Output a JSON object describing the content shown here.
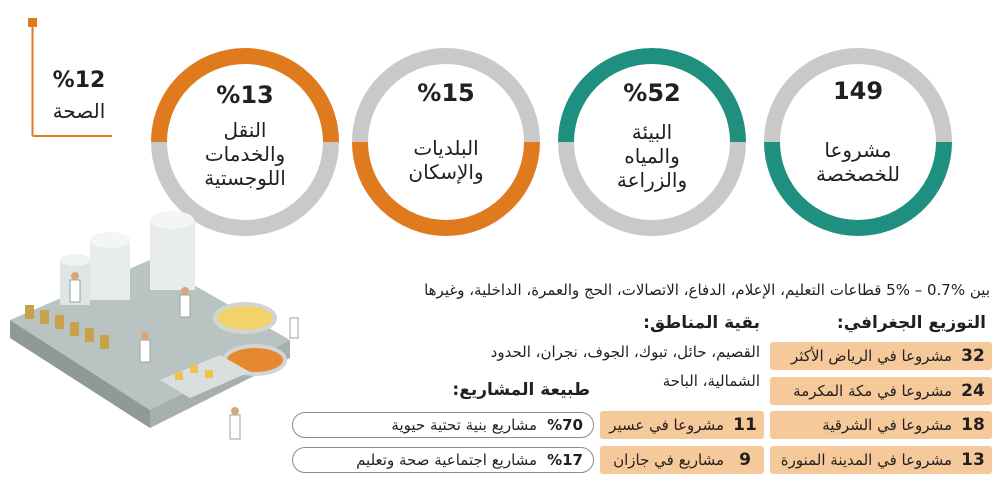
{
  "colors": {
    "orange": "#e07a1f",
    "teal": "#1f8f80",
    "gray": "#bdbdbd",
    "peach": "#f6c99a",
    "dark": "#231f20"
  },
  "health": {
    "value": "%12",
    "label": "الصحة"
  },
  "rings": [
    {
      "value": "149",
      "label_lines": [
        "مشروعا",
        "للخصخصة"
      ]
    },
    {
      "value": "%52",
      "label_lines": [
        "البيئة",
        "والمياه",
        "والزراعة"
      ]
    },
    {
      "value": "%15",
      "label_lines": [
        "البلديات",
        "والإسكان"
      ]
    },
    {
      "value": "%13",
      "label_lines": [
        "النقل",
        "والخدمات",
        "اللوجستية"
      ]
    }
  ],
  "sectors_line": "بين %0.7 – %5 قطاعات التعليم، الإعلام، الدفاع، الاتصالات، الحج والعمرة، الداخلية، وغيرها",
  "geo": {
    "heading": "التوزيع الجغرافي:",
    "items": [
      {
        "num": "32",
        "label": "مشروعا في الرياض الأكثر"
      },
      {
        "num": "24",
        "label": "مشروعا في مكة المكرمة"
      },
      {
        "num": "18",
        "label": "مشروعا في الشرقية"
      },
      {
        "num": "13",
        "label": "مشروعا في المدينة المنورة"
      }
    ],
    "more": [
      {
        "num": "11",
        "label": "مشروعا في عسير"
      },
      {
        "num": "9",
        "label": "مشاريع في جازان"
      }
    ]
  },
  "rest": {
    "heading": "بقية المناطق:",
    "line1": "القصيم، حائل، تبوك، الجوف، نجران، الحدود",
    "line2": "الشمالية، الباحة"
  },
  "types": {
    "heading": "طبيعة المشاريع:",
    "items": [
      {
        "pct": "%70",
        "label": "مشاريع بنية تحتية حيوية"
      },
      {
        "pct": "%17",
        "label": "مشاريع اجتماعية صحة وتعليم"
      }
    ]
  }
}
